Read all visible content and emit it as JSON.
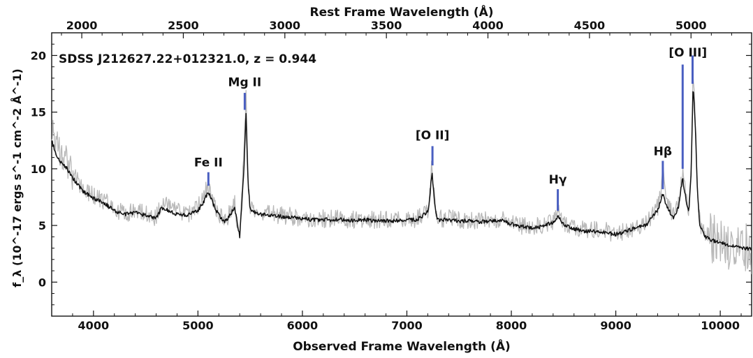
{
  "chart_data": {
    "type": "line",
    "title": "SDSS J212627.22+012321.0, z = 0.944",
    "redshift": 0.944,
    "xlabel": "Observed Frame Wavelength (Å)",
    "xlabel_top": "Rest Frame Wavelength (Å)",
    "ylabel": "f_λ (10^-17 ergs s^-1 cm^-2 Å^-1)",
    "xlim": [
      3600,
      10300
    ],
    "ylim": [
      -3,
      22
    ],
    "xticks": [
      4000,
      5000,
      6000,
      7000,
      8000,
      9000,
      10000
    ],
    "xticks_top": [
      2000,
      2500,
      3000,
      3500,
      4000,
      4500,
      5000
    ],
    "yticks": [
      0,
      5,
      10,
      15,
      20
    ],
    "colors": {
      "raw": "#b8b8b8",
      "smoothed": "#111111",
      "line_marker": "#4a5fc1"
    },
    "series": [
      {
        "style": "raw",
        "x": [
          3600,
          3650,
          3700,
          3750,
          3800,
          3900,
          4000,
          4100,
          4200,
          4300,
          4400,
          4500,
          4600,
          4650,
          4700,
          4800,
          4900,
          5000,
          5050,
          5100,
          5150,
          5200,
          5250,
          5300,
          5350,
          5400,
          5420,
          5440,
          5460,
          5480,
          5500,
          5550,
          5600,
          5700,
          5800,
          5900,
          6000,
          6100,
          6200,
          6300,
          6400,
          6500,
          6600,
          6700,
          6800,
          6900,
          7000,
          7100,
          7200,
          7220,
          7240,
          7260,
          7280,
          7300,
          7400,
          7500,
          7600,
          7700,
          7800,
          7900,
          8000,
          8100,
          8200,
          8300,
          8400,
          8430,
          8450,
          8470,
          8500,
          8600,
          8700,
          8800,
          8900,
          9000,
          9100,
          9200,
          9300,
          9350,
          9400,
          9430,
          9450,
          9470,
          9500,
          9550,
          9600,
          9620,
          9640,
          9660,
          9680,
          9700,
          9720,
          9740,
          9760,
          9780,
          9800,
          9850,
          9900,
          9950,
          10000,
          10100,
          10200,
          10300
        ],
        "y": [
          14,
          12,
          11.5,
          10.5,
          9.5,
          8.2,
          7.6,
          7.2,
          6.4,
          6.1,
          6.3,
          6.0,
          5.7,
          7.0,
          6.8,
          6.2,
          6.0,
          6.6,
          7.4,
          8.6,
          7.0,
          6.0,
          5.4,
          6.0,
          7.0,
          3.6,
          8.0,
          12.0,
          16.5,
          9.0,
          6.6,
          6.3,
          6.2,
          6.0,
          5.9,
          5.8,
          5.7,
          5.6,
          5.6,
          5.6,
          5.6,
          5.5,
          5.6,
          5.5,
          5.5,
          5.5,
          5.6,
          5.6,
          6.4,
          8.0,
          10.5,
          8.0,
          6.0,
          5.6,
          5.6,
          5.5,
          5.5,
          5.4,
          5.5,
          5.6,
          5.2,
          5.0,
          4.9,
          5.0,
          5.4,
          5.8,
          6.2,
          5.6,
          5.2,
          4.8,
          4.6,
          4.6,
          4.5,
          4.3,
          4.6,
          4.9,
          5.2,
          6.0,
          6.6,
          7.6,
          10.0,
          8.0,
          6.8,
          5.8,
          6.8,
          8.4,
          9.6,
          8.4,
          7.0,
          6.6,
          10.0,
          18.5,
          15.0,
          9.0,
          5.4,
          4.2,
          4.0,
          3.8,
          3.6,
          3.2,
          3.0,
          2.8
        ]
      },
      {
        "style": "smoothed",
        "x": [
          3600,
          3650,
          3700,
          3750,
          3800,
          3900,
          4000,
          4100,
          4200,
          4300,
          4400,
          4500,
          4600,
          4650,
          4700,
          4800,
          4900,
          5000,
          5050,
          5100,
          5150,
          5200,
          5250,
          5300,
          5350,
          5400,
          5420,
          5440,
          5460,
          5480,
          5500,
          5550,
          5600,
          5700,
          5800,
          5900,
          6000,
          6100,
          6200,
          6300,
          6400,
          6500,
          6600,
          6700,
          6800,
          6900,
          7000,
          7100,
          7200,
          7220,
          7240,
          7260,
          7280,
          7300,
          7400,
          7500,
          7600,
          7700,
          7800,
          7900,
          8000,
          8100,
          8200,
          8300,
          8400,
          8430,
          8450,
          8470,
          8500,
          8600,
          8700,
          8800,
          8900,
          9000,
          9100,
          9200,
          9300,
          9350,
          9400,
          9430,
          9450,
          9470,
          9500,
          9550,
          9600,
          9620,
          9640,
          9660,
          9680,
          9700,
          9720,
          9740,
          9760,
          9780,
          9800,
          9850,
          9900,
          9950,
          10000,
          10100,
          10200,
          10300
        ],
        "y": [
          12.5,
          11.0,
          10.4,
          10.0,
          9.2,
          8.0,
          7.4,
          7.0,
          6.3,
          6.0,
          6.1,
          5.9,
          5.6,
          6.5,
          6.4,
          6.0,
          5.9,
          6.3,
          7.0,
          8.0,
          6.8,
          5.9,
          5.3,
          5.8,
          6.6,
          4.0,
          7.0,
          10.0,
          14.8,
          8.6,
          6.4,
          6.1,
          6.0,
          5.9,
          5.8,
          5.7,
          5.6,
          5.5,
          5.5,
          5.5,
          5.5,
          5.4,
          5.5,
          5.4,
          5.4,
          5.4,
          5.5,
          5.5,
          6.2,
          7.6,
          9.8,
          7.5,
          5.9,
          5.5,
          5.5,
          5.4,
          5.4,
          5.3,
          5.4,
          5.5,
          5.1,
          4.9,
          4.8,
          4.9,
          5.3,
          5.6,
          5.9,
          5.5,
          5.1,
          4.7,
          4.5,
          4.5,
          4.4,
          4.2,
          4.5,
          4.8,
          5.1,
          5.8,
          6.3,
          7.2,
          7.8,
          7.2,
          6.5,
          5.6,
          6.6,
          8.0,
          9.1,
          8.0,
          6.8,
          6.4,
          9.5,
          17.5,
          14.0,
          8.5,
          5.2,
          4.0,
          3.8,
          3.6,
          3.5,
          3.2,
          3.0,
          2.9
        ]
      }
    ],
    "annotations": [
      {
        "label": "Fe II",
        "x": 5100,
        "y1": 8.5,
        "y2": 9.7,
        "text_y": 10.2
      },
      {
        "label": "Mg II",
        "x": 5448,
        "y1": 15.2,
        "y2": 16.7,
        "text_y": 17.3
      },
      {
        "label": "[O II]",
        "x": 7245,
        "y1": 10.3,
        "y2": 12.0,
        "text_y": 12.6
      },
      {
        "label": "Hγ",
        "x": 8445,
        "y1": 6.3,
        "y2": 8.2,
        "text_y": 8.7
      },
      {
        "label": "Hβ",
        "x": 9450,
        "y1": 8.2,
        "y2": 10.7,
        "text_y": 11.2
      },
      {
        "label": "[O III]",
        "x": 9640,
        "y1": 10.0,
        "y2": 19.2,
        "text_y": 19.9
      },
      {
        "label": "",
        "x": 9735,
        "y1": 17.5,
        "y2": 20.0,
        "text_y": 20.0
      }
    ]
  }
}
